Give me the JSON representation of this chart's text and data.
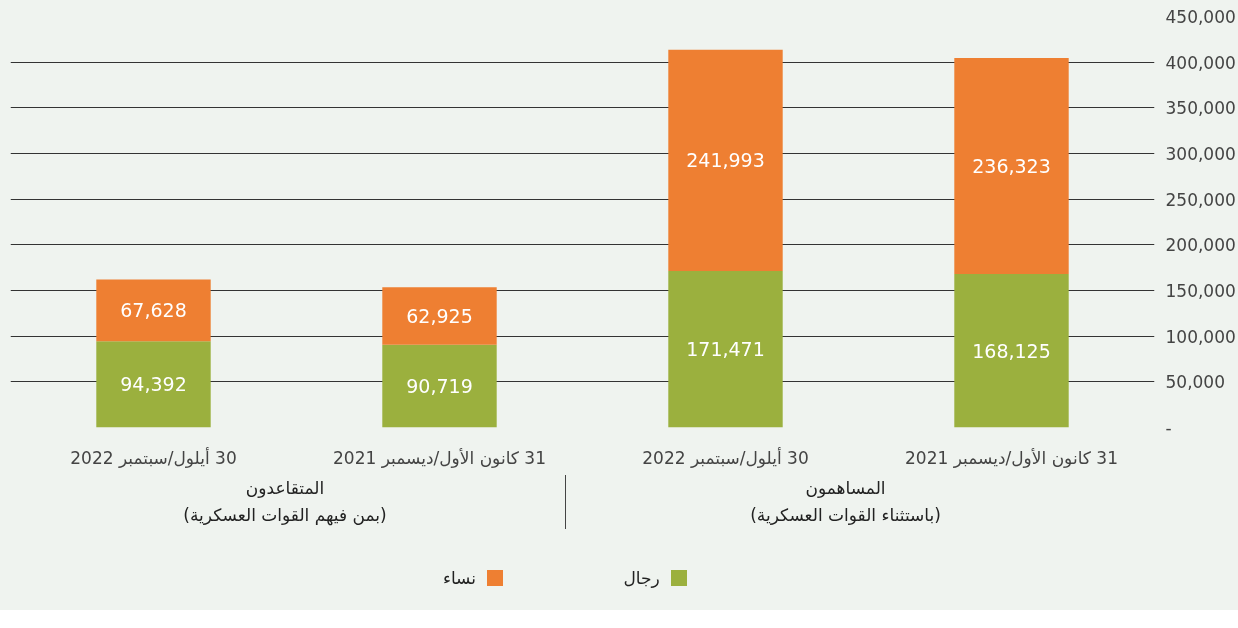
{
  "chart_data": {
    "type": "bar",
    "stacked": true,
    "categories": [
      "30 أيلول/سبتمبر 2022",
      "31 كانون الأول/ديسمبر 2021",
      "30 أيلول/سبتمبر 2022",
      "31 كانون الأول/ديسمبر 2021"
    ],
    "series": [
      {
        "name": "رجال",
        "color": "#9bb03e",
        "values": [
          94392,
          90719,
          171471,
          168125
        ],
        "value_labels": [
          "94,392",
          "90,719",
          "171,471",
          "168,125"
        ]
      },
      {
        "name": "نساء",
        "color": "#ee7f32",
        "values": [
          67628,
          62925,
          241993,
          236323
        ],
        "value_labels": [
          "67,628",
          "62,925",
          "241,993",
          "236,323"
        ]
      }
    ],
    "ylim": [
      0,
      450000
    ],
    "yticks": [
      {
        "value": 0,
        "label": "-"
      },
      {
        "value": 50000,
        "label": "50,000"
      },
      {
        "value": 100000,
        "label": "100,000"
      },
      {
        "value": 150000,
        "label": "150,000"
      },
      {
        "value": 200000,
        "label": "200,000"
      },
      {
        "value": 250000,
        "label": "250,000"
      },
      {
        "value": 300000,
        "label": "300,000"
      },
      {
        "value": 350000,
        "label": "350,000"
      },
      {
        "value": 400000,
        "label": "400,000"
      },
      {
        "value": 450000,
        "label": "450,000"
      }
    ],
    "grid": "y",
    "legend": "bottom",
    "annotations": [
      "المتقاعدون\n(بمن فيهم القوات العسكرية)",
      "المساهمون\n(باستثناء القوات العسكرية)"
    ]
  }
}
